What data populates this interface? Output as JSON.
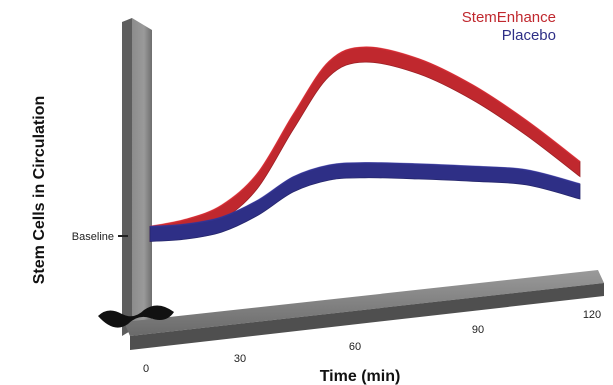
{
  "chart_data": {
    "type": "area",
    "title": "",
    "xlabel": "Time (min)",
    "ylabel": "Stem Cells in Circulation",
    "xlim": [
      0,
      120
    ],
    "x_ticks": [
      0,
      30,
      60,
      90,
      120
    ],
    "y_reference_label": "Baseline",
    "legend_position": "top-right",
    "grid": false,
    "series": [
      {
        "name": "StemEnhance",
        "color": "#c0282e",
        "x": [
          0,
          10,
          20,
          30,
          40,
          50,
          60,
          75,
          90,
          105,
          120
        ],
        "values": [
          0.0,
          0.6,
          1.8,
          4.5,
          9.5,
          14.0,
          15.2,
          14.2,
          12.0,
          9.0,
          5.5
        ]
      },
      {
        "name": "Placebo",
        "color": "#2e2f86",
        "x": [
          0,
          10,
          20,
          30,
          40,
          50,
          60,
          75,
          90,
          105,
          120
        ],
        "values": [
          0.0,
          0.2,
          0.8,
          2.2,
          4.2,
          5.2,
          5.4,
          5.3,
          5.1,
          4.8,
          3.6
        ]
      }
    ]
  }
}
